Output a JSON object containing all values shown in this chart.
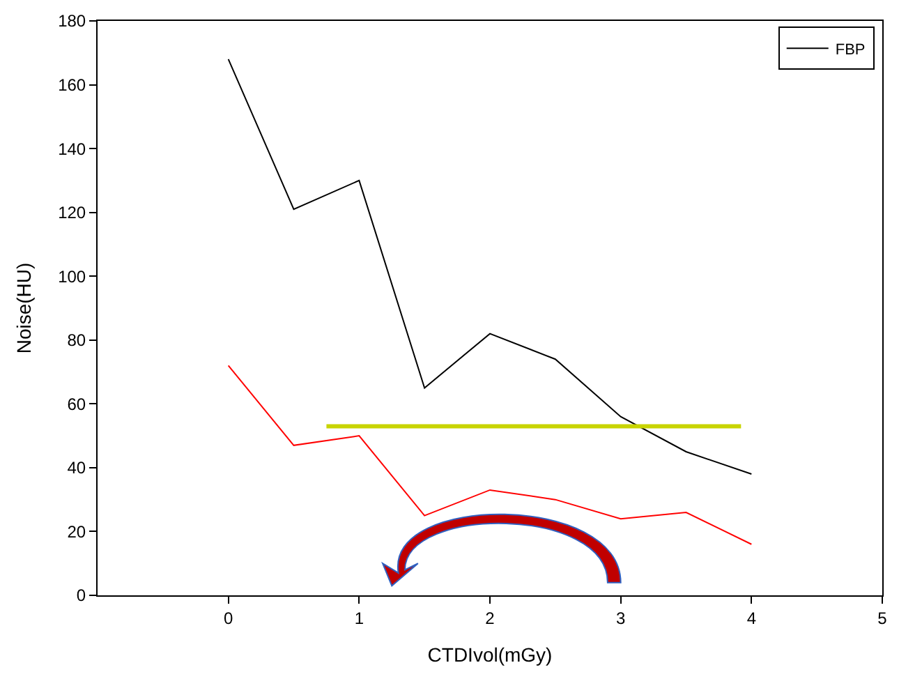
{
  "chart_data": {
    "type": "line",
    "xlabel": "CTDIvol(mGy)",
    "ylabel": "Noise(HU)",
    "x": [
      0,
      0.5,
      1,
      1.5,
      2,
      2.5,
      3,
      3.5,
      4
    ],
    "series": [
      {
        "name": "FBP",
        "color": "#000000",
        "values": [
          168,
          121,
          130,
          65,
          82,
          74,
          56,
          45,
          38
        ]
      },
      {
        "color": "#ff0000",
        "values": [
          72,
          47,
          50,
          25,
          33,
          30,
          24,
          26,
          16
        ]
      },
      {
        "color": "#c8d400",
        "x": [
          0.75,
          3.92
        ],
        "values": [
          53,
          53
        ]
      }
    ],
    "xlim": [
      -1,
      5
    ],
    "xticks": [
      0,
      1,
      2,
      3,
      4,
      5
    ],
    "ylim": [
      0,
      180
    ],
    "yticks": [
      0,
      20,
      40,
      60,
      80,
      100,
      120,
      140,
      160,
      180
    ],
    "legend": "top right",
    "marker": "none",
    "line_style": "solid"
  }
}
